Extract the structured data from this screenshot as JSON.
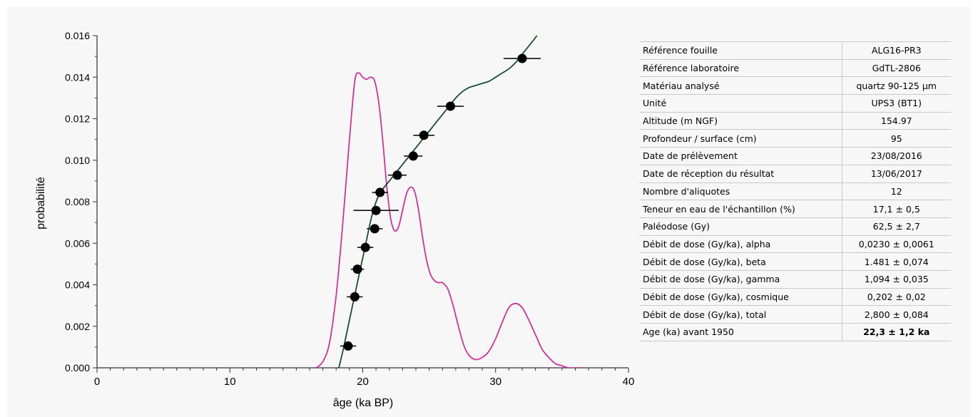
{
  "chart_data": {
    "type": "line",
    "xlabel": "âge (ka BP)",
    "ylabel": "probabilité",
    "xlim": [
      0,
      40
    ],
    "ylim": [
      0,
      0.016
    ],
    "x_ticks": [
      {
        "v": 0,
        "label": "0"
      },
      {
        "v": 10,
        "label": "10"
      },
      {
        "v": 20,
        "label": "20"
      },
      {
        "v": 30,
        "label": "30"
      },
      {
        "v": 40,
        "label": "40"
      }
    ],
    "y_ticks": [
      {
        "v": 0,
        "label": "0.000"
      },
      {
        "v": 0.002,
        "label": "0.002"
      },
      {
        "v": 0.004,
        "label": "0.004"
      },
      {
        "v": 0.006,
        "label": "0.006"
      },
      {
        "v": 0.008,
        "label": "0.008"
      },
      {
        "v": 0.01,
        "label": "0.010"
      },
      {
        "v": 0.012,
        "label": "0.012"
      },
      {
        "v": 0.014,
        "label": "0.014"
      },
      {
        "v": 0.016,
        "label": "0.016"
      }
    ],
    "grid": false,
    "series": [
      {
        "kind": "density_curve",
        "color": "#cc3399",
        "x": [
          16.5,
          17.0,
          17.5,
          18.0,
          18.5,
          19.0,
          19.4,
          19.7,
          20.0,
          20.3,
          20.6,
          20.9,
          21.2,
          21.5,
          21.8,
          22.1,
          22.4,
          22.7,
          23.0,
          23.3,
          23.6,
          23.9,
          24.2,
          24.5,
          24.8,
          25.1,
          25.4,
          25.7,
          26.0,
          26.4,
          26.8,
          27.2,
          27.6,
          28.0,
          28.5,
          29.0,
          29.5,
          30.0,
          30.5,
          31.0,
          31.5,
          32.0,
          32.5,
          33.0,
          33.5,
          34.0,
          34.5,
          35.0,
          35.5,
          36.0,
          36.5
        ],
        "y": [
          0.0,
          0.0003,
          0.0012,
          0.0035,
          0.007,
          0.011,
          0.0138,
          0.0142,
          0.014,
          0.0139,
          0.014,
          0.0138,
          0.0128,
          0.011,
          0.0088,
          0.0072,
          0.0066,
          0.0068,
          0.0076,
          0.0084,
          0.0087,
          0.0085,
          0.0076,
          0.0063,
          0.0052,
          0.0045,
          0.0042,
          0.0041,
          0.0041,
          0.0038,
          0.003,
          0.002,
          0.0011,
          0.0006,
          0.0004,
          0.0005,
          0.0008,
          0.0014,
          0.0022,
          0.0029,
          0.0031,
          0.0029,
          0.0023,
          0.0016,
          0.0009,
          0.0005,
          0.0002,
          0.0001,
          0.0,
          0.0,
          0.0
        ]
      },
      {
        "kind": "cumulative_curve",
        "color": "#1a4d2e",
        "x": [
          18.2,
          18.5,
          18.8,
          19.1,
          19.4,
          19.7,
          20.0,
          20.3,
          20.6,
          20.9,
          21.2,
          21.5,
          22.0,
          22.5,
          23.0,
          23.5,
          24.0,
          24.5,
          25.0,
          25.5,
          26.0,
          26.5,
          27.0,
          27.5,
          28.0,
          28.5,
          29.0,
          29.5,
          30.0,
          30.5,
          31.0,
          31.5,
          32.0,
          32.5,
          33.0,
          33.3
        ],
        "y": [
          0.0,
          0.0008,
          0.0017,
          0.0026,
          0.0035,
          0.0044,
          0.0053,
          0.0062,
          0.0071,
          0.0078,
          0.0083,
          0.0086,
          0.009,
          0.0094,
          0.0098,
          0.0102,
          0.0106,
          0.011,
          0.0114,
          0.0118,
          0.0122,
          0.0126,
          0.013,
          0.0133,
          0.0135,
          0.0136,
          0.0137,
          0.0138,
          0.014,
          0.0142,
          0.0144,
          0.0147,
          0.0151,
          0.0155,
          0.0159,
          0.0162
        ]
      },
      {
        "kind": "points_with_xerror",
        "color": "#000000",
        "points": [
          {
            "x": 18.9,
            "y": 0.00105,
            "xerr": 0.6
          },
          {
            "x": 19.4,
            "y": 0.00342,
            "xerr": 0.6
          },
          {
            "x": 19.6,
            "y": 0.00475,
            "xerr": 0.5
          },
          {
            "x": 20.2,
            "y": 0.0058,
            "xerr": 0.6
          },
          {
            "x": 20.9,
            "y": 0.0067,
            "xerr": 0.6
          },
          {
            "x": 21.0,
            "y": 0.00758,
            "xerr": 1.7
          },
          {
            "x": 21.3,
            "y": 0.00845,
            "xerr": 0.6
          },
          {
            "x": 22.6,
            "y": 0.00928,
            "xerr": 0.7
          },
          {
            "x": 23.8,
            "y": 0.0102,
            "xerr": 0.7
          },
          {
            "x": 24.6,
            "y": 0.0112,
            "xerr": 0.8
          },
          {
            "x": 26.6,
            "y": 0.0126,
            "xerr": 1.0
          },
          {
            "x": 32.0,
            "y": 0.0149,
            "xerr": 1.4
          }
        ]
      }
    ]
  },
  "table": [
    {
      "label": "Référence fouille",
      "value": "ALG16-PR3"
    },
    {
      "label": "Référence laboratoire",
      "value": "GdTL-2806"
    },
    {
      "label": "Matériau analysé",
      "value": "quartz 90-125 µm"
    },
    {
      "label": "Unité",
      "value": "UPS3 (BT1)"
    },
    {
      "label": "Altitude (m NGF)",
      "value": "154.97"
    },
    {
      "label": "Profondeur / surface (cm)",
      "value": "95"
    },
    {
      "label": "Date de prélèvement",
      "value": "23/08/2016"
    },
    {
      "label": "Date de réception du résultat",
      "value": "13/06/2017"
    },
    {
      "label": "Nombre d'aliquotes",
      "value": "12"
    },
    {
      "label": "Teneur en eau de l'échantillon (%)",
      "value": "17,1 ± 0,5"
    },
    {
      "label": "Paléodose (Gy)",
      "value": "62,5 ± 2,7"
    },
    {
      "label": "Débit de dose (Gy/ka), alpha",
      "value": "0,0230 ± 0,0061"
    },
    {
      "label": "Débit de dose (Gy/ka), beta",
      "value": "1.481 ± 0,074"
    },
    {
      "label": "Débit de dose (Gy/ka), gamma",
      "value": "1,094 ± 0,035"
    },
    {
      "label": "Débit de dose (Gy/ka), cosmique",
      "value": "0,202 ± 0,02"
    },
    {
      "label": "Débit de dose (Gy/ka), total",
      "value": "2,800 ± 0,084"
    },
    {
      "label": "Age (ka) avant 1950",
      "value": "22,3  ± 1,2 ka",
      "strong": true
    }
  ]
}
